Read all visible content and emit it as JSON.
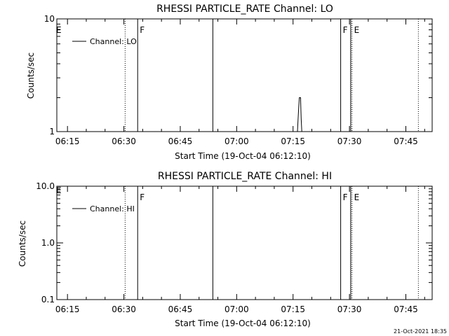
{
  "footer_timestamp": "21-Oct-2021 18:35",
  "chart_data": [
    {
      "type": "line",
      "title": "RHESSI PARTICLE_RATE Channel: LO",
      "xlabel": "Start Time (19-Oct-04 06:12:10)",
      "ylabel": "Counts/sec",
      "yscale": "log",
      "xlim": [
        "06:12:10",
        "07:52:00"
      ],
      "ylim": [
        1,
        10
      ],
      "xticks": [
        "06:15",
        "06:30",
        "06:45",
        "07:00",
        "07:15",
        "07:30",
        "07:45"
      ],
      "yticks": [
        {
          "value": 1,
          "label": "1"
        },
        {
          "value": 10,
          "label": "10"
        }
      ],
      "legend": {
        "position": "top-left",
        "entries": [
          "Channel: LO"
        ]
      },
      "series": [
        {
          "name": "Channel: LO",
          "x": [
            "07:16:10",
            "07:16:20",
            "07:16:30",
            "07:16:40",
            "07:17:00",
            "07:17:10",
            "07:17:20"
          ],
          "values": [
            1,
            1.3,
            1.65,
            2.0,
            2.0,
            1.3,
            1
          ]
        }
      ],
      "vlines": [
        {
          "time": "06:30:20",
          "style": "dotted",
          "label": ""
        },
        {
          "time": "06:33:40",
          "style": "solid",
          "label": "F"
        },
        {
          "time": "06:53:40",
          "style": "solid",
          "label": ""
        },
        {
          "time": "07:27:40",
          "style": "solid",
          "label": "F"
        },
        {
          "time": "07:30:20",
          "style": "solid",
          "label": ""
        },
        {
          "time": "07:30:40",
          "style": "dotted",
          "label": "E"
        },
        {
          "time": "07:48:20",
          "style": "dotted",
          "label": ""
        }
      ],
      "edge_label": "E"
    },
    {
      "type": "line",
      "title": "RHESSI PARTICLE_RATE Channel: HI",
      "xlabel": "Start Time (19-Oct-04 06:12:10)",
      "ylabel": "Counts/sec",
      "yscale": "log",
      "xlim": [
        "06:12:10",
        "07:52:00"
      ],
      "ylim": [
        0.1,
        10
      ],
      "xticks": [
        "06:15",
        "06:30",
        "06:45",
        "07:00",
        "07:15",
        "07:30",
        "07:45"
      ],
      "yticks": [
        {
          "value": 0.1,
          "label": "0.1"
        },
        {
          "value": 1,
          "label": "1.0"
        },
        {
          "value": 10,
          "label": "10.0"
        }
      ],
      "legend": {
        "position": "top-left",
        "entries": [
          "Channel: HI"
        ]
      },
      "series": [
        {
          "name": "Channel: HI",
          "x": [],
          "values": []
        }
      ],
      "vlines": [
        {
          "time": "06:30:20",
          "style": "dotted",
          "label": ""
        },
        {
          "time": "06:33:40",
          "style": "solid",
          "label": "F"
        },
        {
          "time": "06:53:40",
          "style": "solid",
          "label": ""
        },
        {
          "time": "07:27:40",
          "style": "solid",
          "label": "F"
        },
        {
          "time": "07:30:20",
          "style": "solid",
          "label": ""
        },
        {
          "time": "07:30:40",
          "style": "dotted",
          "label": "E"
        },
        {
          "time": "07:48:20",
          "style": "dotted",
          "label": ""
        }
      ],
      "edge_label": "E"
    }
  ]
}
